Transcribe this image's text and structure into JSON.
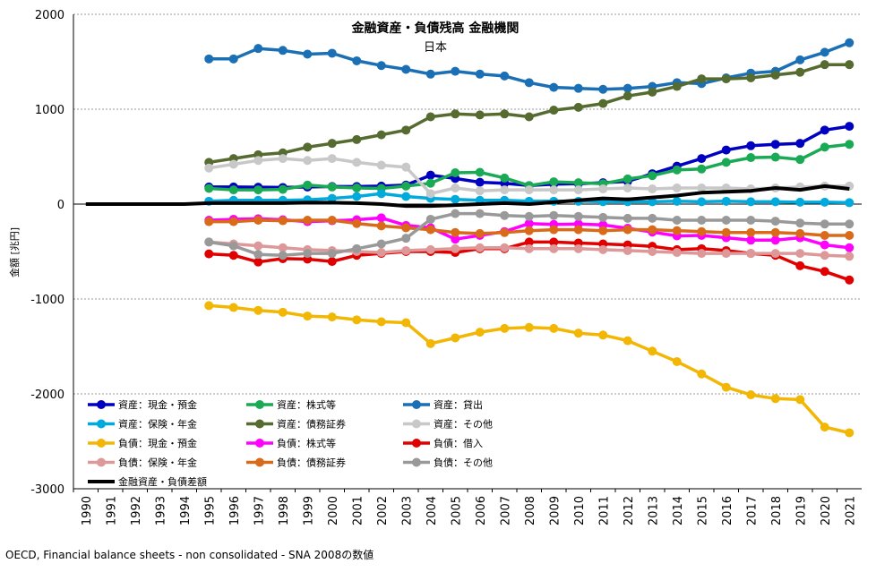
{
  "chart_data": {
    "type": "line",
    "title": "金融資産・負債残高 金融機関",
    "subtitle": "日本",
    "ylabel": "金額 [兆円]",
    "xlabel": "",
    "ylim": [
      -3000,
      2000
    ],
    "yticks": [
      2000,
      1000,
      0,
      -1000,
      -2000,
      -3000
    ],
    "ytick_labels": [
      "2000",
      "1000",
      "0",
      "-1000",
      "-2000",
      "-3000"
    ],
    "categories": [
      "1990",
      "1991",
      "1992",
      "1993",
      "1994",
      "1995",
      "1996",
      "1997",
      "1998",
      "1999",
      "2000",
      "2001",
      "2002",
      "2003",
      "2004",
      "2005",
      "2006",
      "2007",
      "2008",
      "2009",
      "2010",
      "2011",
      "2012",
      "2013",
      "2014",
      "2015",
      "2016",
      "2017",
      "2018",
      "2019",
      "2020",
      "2021"
    ],
    "source": "OECD, Financial balance sheets - non consolidated - SNA 2008の数値",
    "series": [
      {
        "name": "資産：現金・預金",
        "color": "#0000c0",
        "values": [
          null,
          null,
          null,
          null,
          null,
          180,
          180,
          178,
          175,
          180,
          185,
          185,
          190,
          200,
          305,
          270,
          230,
          220,
          195,
          210,
          215,
          225,
          240,
          320,
          400,
          480,
          570,
          615,
          630,
          640,
          780,
          820
        ]
      },
      {
        "name": "資産：株式等",
        "color": "#1aaa55",
        "values": [
          null,
          null,
          null,
          null,
          null,
          165,
          150,
          150,
          155,
          200,
          180,
          170,
          165,
          190,
          220,
          330,
          335,
          275,
          195,
          235,
          225,
          215,
          265,
          300,
          360,
          370,
          440,
          490,
          495,
          470,
          600,
          630
        ]
      },
      {
        "name": "資産：貸出",
        "color": "#1a6fb5",
        "values": [
          null,
          null,
          null,
          null,
          null,
          1530,
          1530,
          1640,
          1620,
          1580,
          1590,
          1510,
          1460,
          1420,
          1370,
          1400,
          1370,
          1350,
          1280,
          1230,
          1220,
          1210,
          1220,
          1240,
          1280,
          1270,
          1330,
          1380,
          1400,
          1520,
          1600,
          1700
        ]
      },
      {
        "name": "資産：保険・年金",
        "color": "#00aadd",
        "values": [
          null,
          null,
          null,
          null,
          null,
          30,
          40,
          40,
          40,
          45,
          60,
          80,
          110,
          80,
          60,
          50,
          40,
          40,
          30,
          30,
          30,
          25,
          25,
          25,
          30,
          25,
          30,
          25,
          25,
          20,
          20,
          15
        ]
      },
      {
        "name": "資産：債務証券",
        "color": "#556b2f",
        "values": [
          null,
          null,
          null,
          null,
          null,
          440,
          480,
          520,
          540,
          600,
          640,
          680,
          730,
          780,
          920,
          950,
          940,
          950,
          920,
          990,
          1020,
          1060,
          1140,
          1180,
          1240,
          1320,
          1320,
          1330,
          1360,
          1390,
          1470,
          1470
        ]
      },
      {
        "name": "資産：その他",
        "color": "#c8c8c8",
        "values": [
          null,
          null,
          null,
          null,
          null,
          380,
          420,
          460,
          480,
          460,
          480,
          440,
          410,
          390,
          110,
          170,
          140,
          150,
          150,
          150,
          150,
          160,
          170,
          160,
          170,
          170,
          170,
          160,
          170,
          180,
          190,
          190
        ]
      },
      {
        "name": "負債：現金・預金",
        "color": "#f2b705",
        "values": [
          null,
          null,
          null,
          null,
          null,
          -1070,
          -1090,
          -1120,
          -1140,
          -1180,
          -1190,
          -1220,
          -1240,
          -1250,
          -1470,
          -1410,
          -1350,
          -1310,
          -1300,
          -1310,
          -1360,
          -1380,
          -1440,
          -1550,
          -1660,
          -1790,
          -1930,
          -2010,
          -2050,
          -2060,
          -2350,
          -2410
        ]
      },
      {
        "name": "負債：株式等",
        "color": "#ff00ff",
        "values": [
          null,
          null,
          null,
          null,
          null,
          -170,
          -160,
          -155,
          -165,
          -185,
          -175,
          -165,
          -145,
          -225,
          -250,
          -370,
          -330,
          -290,
          -205,
          -215,
          -210,
          -220,
          -255,
          -295,
          -335,
          -330,
          -355,
          -380,
          -380,
          -355,
          -430,
          -460
        ]
      },
      {
        "name": "負債：借入",
        "color": "#e00000",
        "values": [
          null,
          null,
          null,
          null,
          null,
          -525,
          -540,
          -610,
          -575,
          -580,
          -605,
          -540,
          -520,
          -500,
          -500,
          -510,
          -470,
          -470,
          -400,
          -400,
          -410,
          -420,
          -430,
          -445,
          -480,
          -470,
          -490,
          -520,
          -540,
          -650,
          -710,
          -800
        ]
      },
      {
        "name": "負債：保険・年金",
        "color": "#dd9999",
        "values": [
          null,
          null,
          null,
          null,
          null,
          -400,
          -420,
          -440,
          -460,
          -480,
          -490,
          -500,
          -510,
          -490,
          -480,
          -470,
          -460,
          -460,
          -470,
          -470,
          -470,
          -480,
          -490,
          -500,
          -510,
          -520,
          -520,
          -520,
          -520,
          -520,
          -540,
          -550
        ]
      },
      {
        "name": "負債：債務証券",
        "color": "#d86a1a",
        "values": [
          null,
          null,
          null,
          null,
          null,
          -185,
          -185,
          -170,
          -175,
          -170,
          -170,
          -205,
          -230,
          -250,
          -270,
          -300,
          -310,
          -300,
          -280,
          -270,
          -270,
          -280,
          -270,
          -270,
          -280,
          -290,
          -300,
          -300,
          -300,
          -310,
          -330,
          -330
        ]
      },
      {
        "name": "負債：その他",
        "color": "#999999",
        "values": [
          null,
          null,
          null,
          null,
          null,
          -400,
          -440,
          -530,
          -540,
          -520,
          -520,
          -470,
          -420,
          -360,
          -160,
          -100,
          -100,
          -120,
          -130,
          -120,
          -130,
          -140,
          -150,
          -150,
          -170,
          -170,
          -170,
          -170,
          -180,
          -200,
          -210,
          -210
        ]
      },
      {
        "name": "金融資産・負債差額",
        "color": "#000000",
        "values": [
          0,
          0,
          0,
          0,
          0,
          10,
          10,
          10,
          10,
          15,
          15,
          10,
          0,
          -20,
          -20,
          -10,
          0,
          10,
          0,
          20,
          40,
          60,
          50,
          70,
          90,
          120,
          130,
          140,
          170,
          150,
          190,
          160
        ]
      }
    ]
  }
}
